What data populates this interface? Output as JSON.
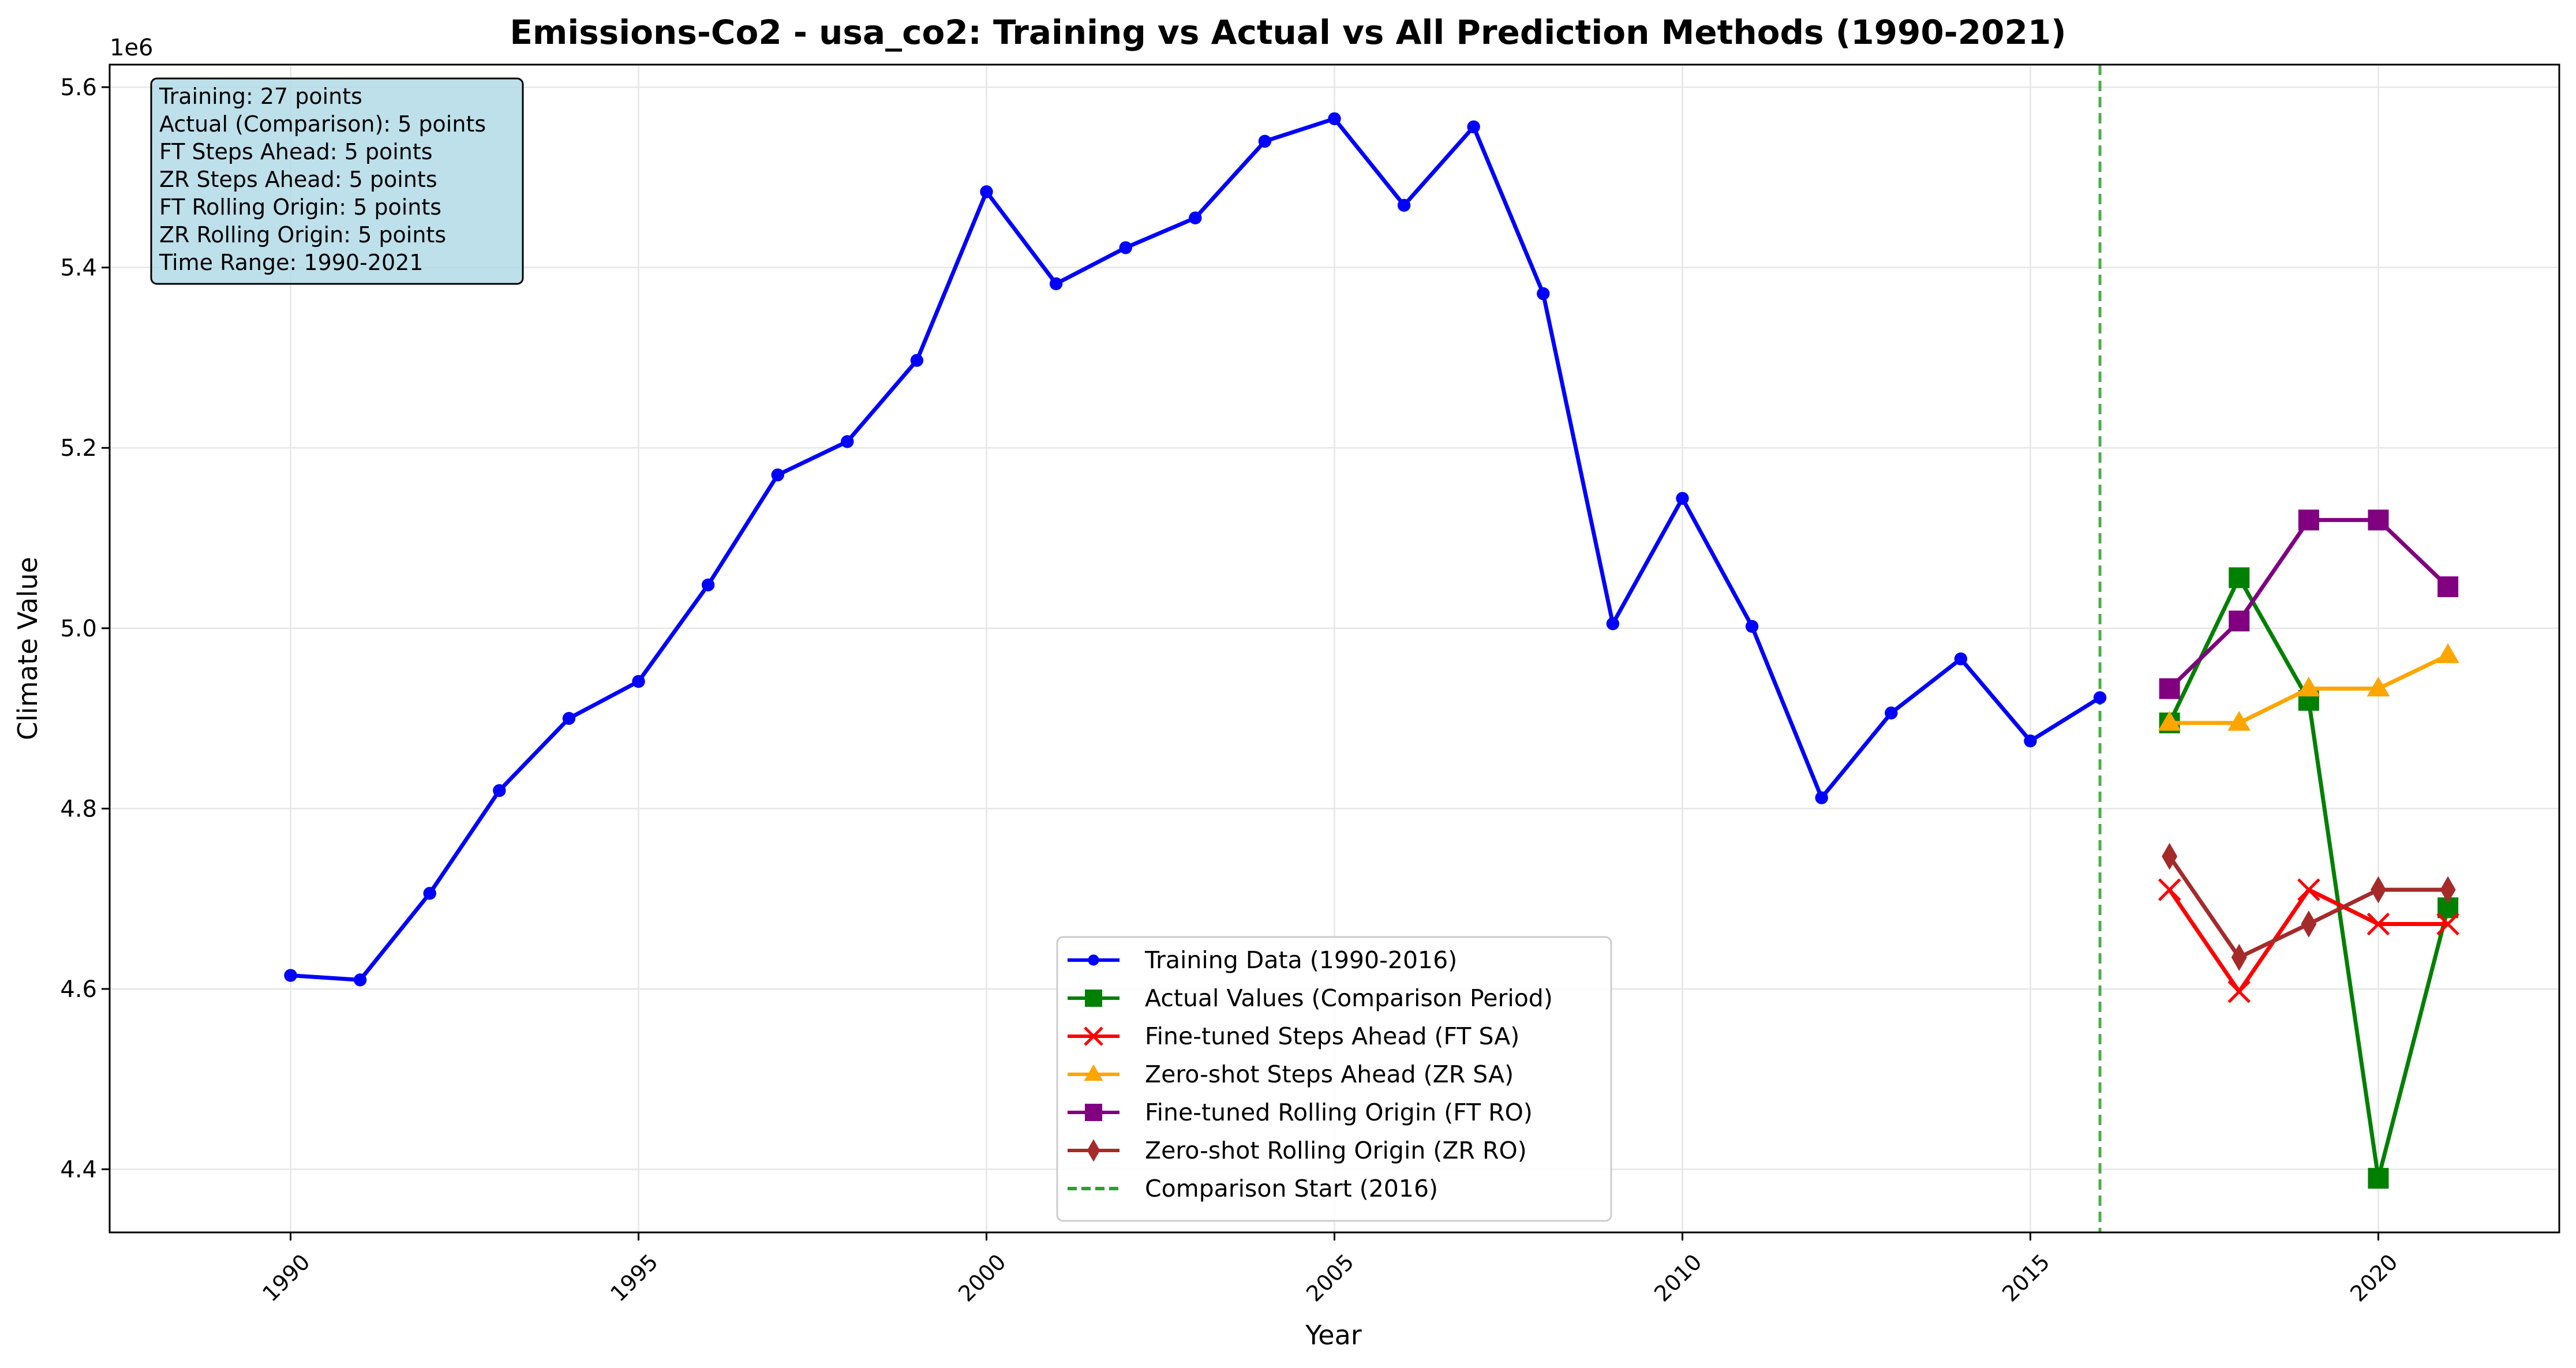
{
  "chart_data": {
    "type": "line",
    "title": "Emissions-Co2 - usa_co2: Training vs Actual vs All Prediction Methods (1990-2021)",
    "xlabel": "Year",
    "ylabel": "Climate Value",
    "y_offset_label": "1e6",
    "y_multiplier": 1000000,
    "xlim": [
      1987.4,
      2022.6
    ],
    "ylim": [
      4.33,
      5.625
    ],
    "x_ticks": [
      1990,
      1995,
      2000,
      2005,
      2010,
      2015,
      2020
    ],
    "y_ticks": [
      4.4,
      4.6,
      4.8,
      5.0,
      5.2,
      5.4,
      5.6
    ],
    "y_tick_labels": [
      "4.4",
      "4.6",
      "4.8",
      "5.0",
      "5.2",
      "5.4",
      "5.6"
    ],
    "grid": true,
    "legend_position": "lower-center",
    "info_box": [
      "Training: 27 points",
      "Actual (Comparison): 5 points",
      "FT Steps Ahead: 5 points",
      "ZR Steps Ahead: 5 points",
      "FT Rolling Origin: 5 points",
      "ZR Rolling Origin: 5 points",
      "Time Range: 1990-2021"
    ],
    "vline": {
      "x": 2016,
      "name": "Comparison Start (2016)",
      "color": "#2ca02c"
    },
    "series": [
      {
        "name": "Training Data (1990-2016)",
        "color": "#0000ff",
        "marker": "circle",
        "x": [
          1990,
          1991,
          1992,
          1993,
          1994,
          1995,
          1996,
          1997,
          1998,
          1999,
          2000,
          2001,
          2002,
          2003,
          2004,
          2005,
          2006,
          2007,
          2008,
          2009,
          2010,
          2011,
          2012,
          2013,
          2014,
          2015,
          2016
        ],
        "y": [
          4.615,
          4.61,
          4.706,
          4.82,
          4.9,
          4.941,
          5.048,
          5.17,
          5.207,
          5.297,
          5.484,
          5.382,
          5.422,
          5.455,
          5.54,
          5.565,
          5.469,
          5.556,
          5.371,
          5.005,
          5.144,
          5.002,
          4.812,
          4.906,
          4.966,
          4.875,
          4.923
        ]
      },
      {
        "name": "Actual Values (Comparison Period)",
        "color": "#008000",
        "marker": "square",
        "x": [
          2017,
          2018,
          2019,
          2020,
          2021
        ],
        "y": [
          4.895,
          5.056,
          4.92,
          4.39,
          4.69
        ]
      },
      {
        "name": "Fine-tuned Steps Ahead (FT SA)",
        "color": "#ff0000",
        "marker": "x",
        "x": [
          2017,
          2018,
          2019,
          2020,
          2021
        ],
        "y": [
          4.71,
          4.597,
          4.71,
          4.672,
          4.672
        ]
      },
      {
        "name": "Zero-shot Steps Ahead (ZR SA)",
        "color": "#ffa500",
        "marker": "triangle",
        "x": [
          2017,
          2018,
          2019,
          2020,
          2021
        ],
        "y": [
          4.895,
          4.895,
          4.933,
          4.933,
          4.97
        ]
      },
      {
        "name": "Fine-tuned Rolling Origin (FT RO)",
        "color": "#800080",
        "marker": "square",
        "x": [
          2017,
          2018,
          2019,
          2020,
          2021
        ],
        "y": [
          4.933,
          5.008,
          5.12,
          5.12,
          5.046
        ]
      },
      {
        "name": "Zero-shot Rolling Origin (ZR RO)",
        "color": "#a52a2a",
        "marker": "diamond",
        "x": [
          2017,
          2018,
          2019,
          2020,
          2021
        ],
        "y": [
          4.747,
          4.635,
          4.672,
          4.71,
          4.71
        ]
      }
    ]
  }
}
